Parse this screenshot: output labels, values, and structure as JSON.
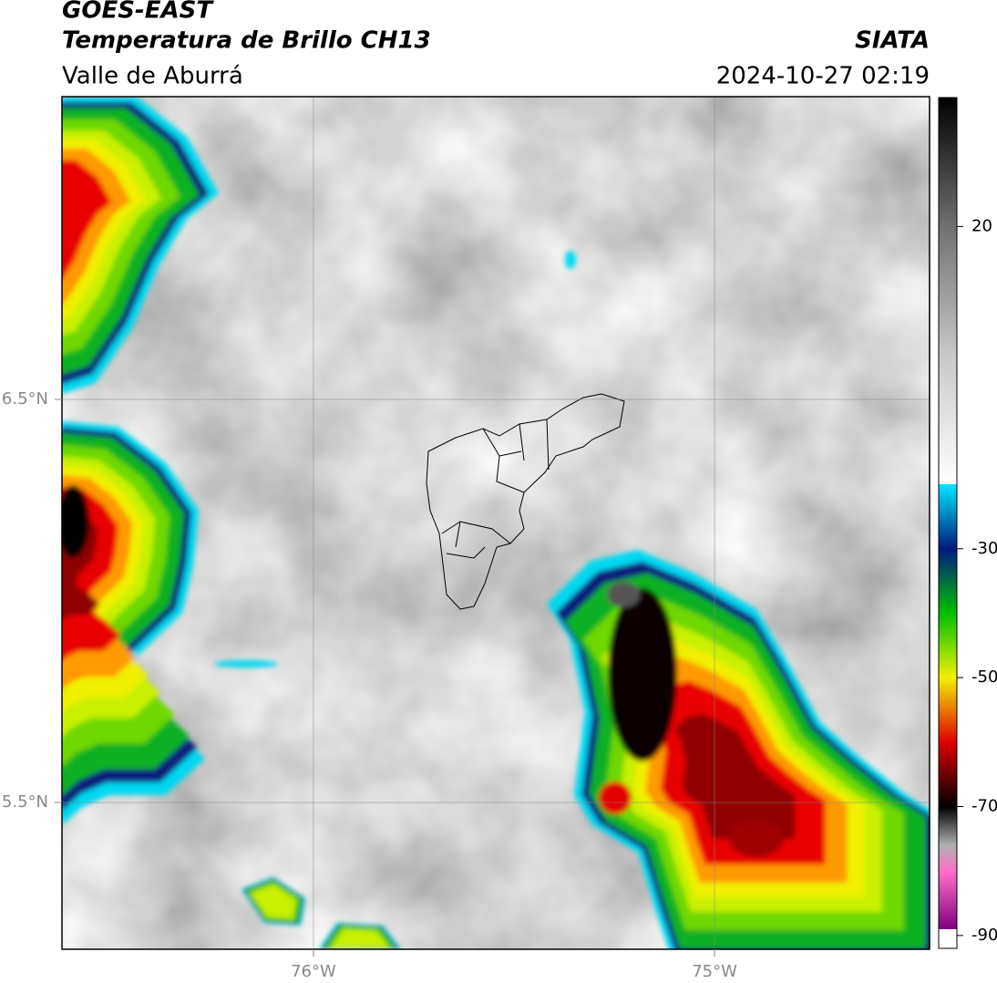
{
  "header": {
    "title": "GOES-EAST",
    "subtitle": "Temperatura de Brillo CH13",
    "region": "Valle de Aburrá",
    "source": "SIATA",
    "datetime": "2024-10-27 02:19"
  },
  "map": {
    "xlim": [
      -76.627,
      -74.464
    ],
    "ylim": [
      5.136,
      7.251
    ],
    "grid": true,
    "xticks": [
      {
        "value": -76,
        "label": "76°W"
      },
      {
        "value": -75,
        "label": "75°W"
      }
    ],
    "yticks": [
      {
        "value": 6.5,
        "label": "6.5°N"
      },
      {
        "value": 5.5,
        "label": "5.5°N"
      }
    ]
  },
  "colorbar": {
    "lim": [
      -92,
      40
    ],
    "ticks": [
      20,
      -30,
      -50,
      -70,
      -90
    ],
    "stops": [
      {
        "value": 40,
        "color": "#000000"
      },
      {
        "value": 20,
        "color": "#707070"
      },
      {
        "value": 0,
        "color": "#c8c8c8"
      },
      {
        "value": -20,
        "color": "#ffffff"
      },
      {
        "value": -20,
        "color": "#00e8ff"
      },
      {
        "value": -30,
        "color": "#001a80"
      },
      {
        "value": -40,
        "color": "#00c000"
      },
      {
        "value": -50,
        "color": "#f0f000"
      },
      {
        "value": -60,
        "color": "#e00000"
      },
      {
        "value": -70,
        "color": "#000000"
      },
      {
        "value": -76,
        "color": "#b0b0b0"
      },
      {
        "value": -80,
        "color": "#ff70c8"
      },
      {
        "value": -89,
        "color": "#800080"
      },
      {
        "value": -89,
        "color": "#ffffff"
      },
      {
        "value": -92,
        "color": "#ffffff"
      }
    ]
  }
}
